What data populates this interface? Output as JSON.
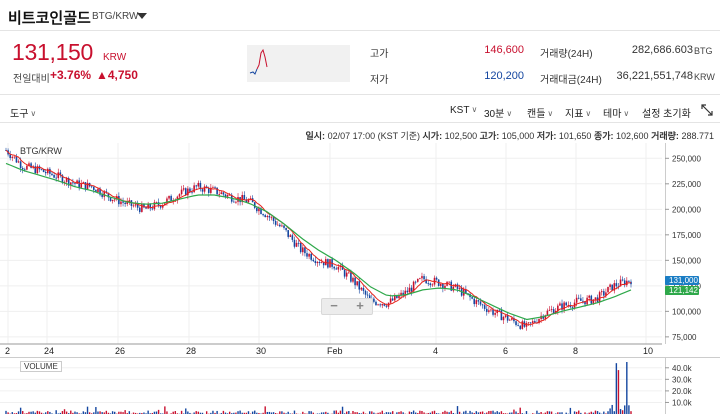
{
  "header": {
    "title": "비트코인골드",
    "pair": "BTG/KRW"
  },
  "ticker": {
    "price": "131,150",
    "unit": "KRW",
    "change_label": "전일대비",
    "change_rate": "+3.76%",
    "change_amount": "▲4,750"
  },
  "stats": {
    "high_label": "고가",
    "high_value": "146,600",
    "low_label": "저가",
    "low_value": "120,200",
    "volume_label": "거래량(24H)",
    "volume_value": "282,686.603",
    "volume_unit": "BTG",
    "amount_label": "거래대금(24H)",
    "amount_value": "36,221,551,748",
    "amount_unit": "KRW"
  },
  "toolbar": {
    "tools_label": "도구",
    "timezone_label": "KST",
    "interval_label": "30분",
    "candle_label": "캔들",
    "indicator_label": "지표",
    "theme_label": "테마",
    "reset_label": "설정 초기화"
  },
  "infobar": {
    "text_prefix": "일시:",
    "datetime": "02/07 17:00 (KST 기준)",
    "open_label": "시가:",
    "open": "102,500",
    "high_label": "고가:",
    "high": "105,000",
    "low_label": "저가:",
    "low": "101,650",
    "close_label": "종가:",
    "close": "102,600",
    "volume_label": "거래량:",
    "volume": "288.771"
  },
  "chart": {
    "pair_label": "BTG/KRW",
    "volume_label": "VOLUME",
    "x_ticks": [
      "2",
      "24",
      "26",
      "28",
      "30",
      "Feb",
      "4",
      "6",
      "8",
      "10"
    ],
    "y_ticks": [
      "250,000",
      "225,000",
      "200,000",
      "175,000",
      "150,000",
      "125,000",
      "100,000",
      "75,000"
    ],
    "vol_ticks": [
      "40.0k",
      "30.0k",
      "20.0k",
      "10.0k"
    ],
    "last_price_tag": "131,000",
    "ma_tag": "121,142",
    "zoom_out": "−",
    "zoom_in": "+",
    "colors": {
      "up": "#c8102e",
      "down": "#1446a0",
      "ma_short": "#e8231b",
      "ma_long": "#2ea84a",
      "tag_last": "#1a7dc4",
      "tag_ma": "#2ea84a"
    }
  },
  "chart_data": {
    "type": "line",
    "title": "",
    "x_ticks": [
      "2",
      "24",
      "26",
      "28",
      "30",
      "Feb",
      "4",
      "6",
      "8",
      "10"
    ],
    "y_range": [
      68000,
      265000
    ],
    "series": [
      {
        "name": "",
        "values": [
          258000,
          242000,
          238000,
          232000,
          225000,
          222000,
          212000,
          205000,
          200000,
          206000,
          215000,
          222000,
          218000,
          212000,
          208000,
          195000,
          180000,
          160000,
          150000,
          145000,
          130000,
          110000,
          108000,
          118000,
          132000,
          128000,
          122000,
          110000,
          100000,
          92000,
          84000,
          98000,
          105000,
          110000,
          112000,
          125000,
          131000
        ]
      }
    ],
    "ma_long": [
      245000,
      238000,
      233000,
      228000,
      222000,
      218000,
      212000,
      207000,
      205000,
      206000,
      210000,
      214000,
      214000,
      211000,
      206000,
      198000,
      186000,
      172000,
      160000,
      150000,
      138000,
      124000,
      115000,
      116000,
      121000,
      123000,
      121000,
      114000,
      106000,
      98000,
      92000,
      95000,
      100000,
      104000,
      108000,
      114000,
      121000
    ]
  }
}
